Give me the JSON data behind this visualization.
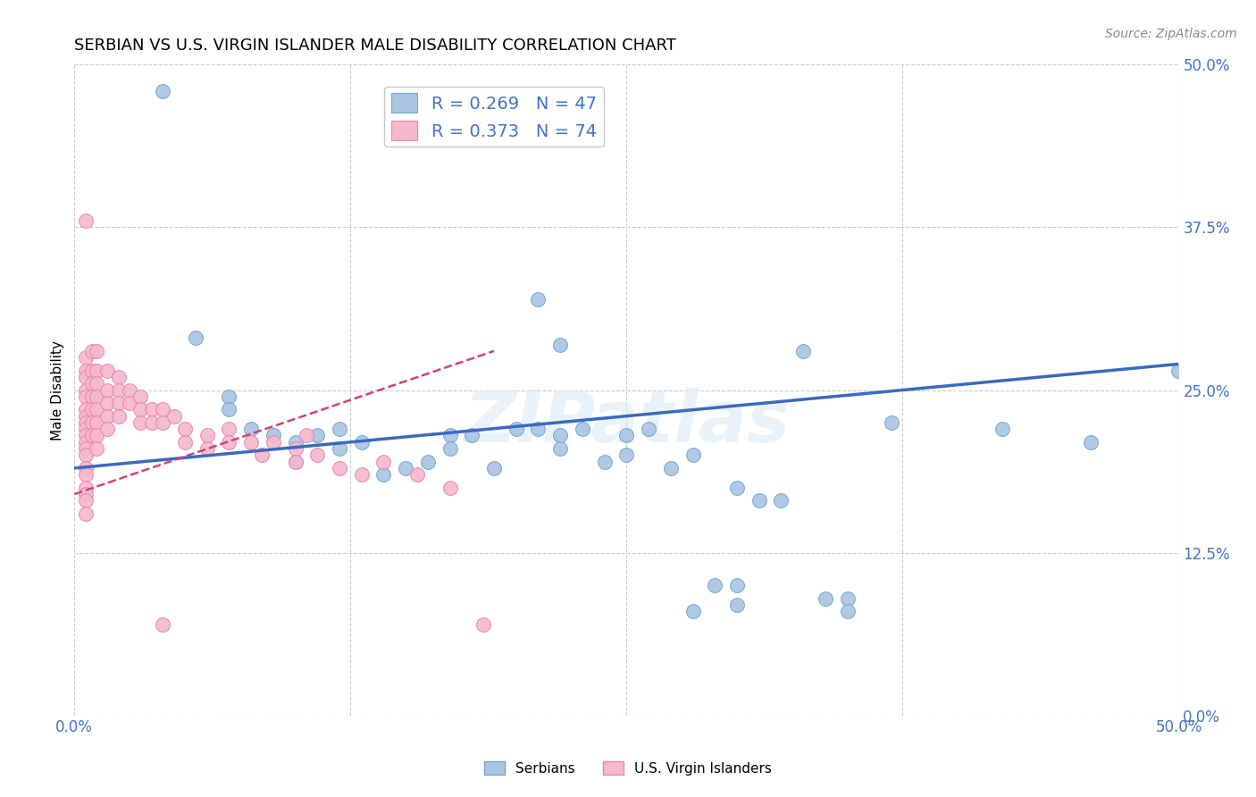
{
  "title": "SERBIAN VS U.S. VIRGIN ISLANDER MALE DISABILITY CORRELATION CHART",
  "source_text": "Source: ZipAtlas.com",
  "ylabel": "Male Disability",
  "xlim": [
    0.0,
    0.5
  ],
  "ylim": [
    0.0,
    0.5
  ],
  "xticks": [
    0.0,
    0.125,
    0.25,
    0.375,
    0.5
  ],
  "yticks": [
    0.0,
    0.125,
    0.25,
    0.375,
    0.5
  ],
  "xtick_labels_bottom": [
    "0.0%",
    "",
    "",
    "",
    "50.0%"
  ],
  "ytick_labels_right": [
    "0.0%",
    "12.5%",
    "25.0%",
    "37.5%",
    "50.0%"
  ],
  "blue_R": 0.269,
  "blue_N": 47,
  "pink_R": 0.373,
  "pink_N": 74,
  "blue_color": "#aac4e2",
  "blue_edge_color": "#6fa8d4",
  "pink_color": "#f5b8cc",
  "pink_edge_color": "#e888a8",
  "blue_line_color": "#3a6abf",
  "pink_line_color": "#cc4477",
  "legend_R_color": "#4472c4",
  "title_fontsize": 13,
  "axis_label_fontsize": 11,
  "tick_fontsize": 12,
  "legend_fontsize": 14,
  "watermark_text": "ZIPatlas",
  "blue_scatter_x": [
    0.04,
    0.055,
    0.07,
    0.07,
    0.08,
    0.09,
    0.1,
    0.1,
    0.11,
    0.12,
    0.12,
    0.13,
    0.14,
    0.15,
    0.16,
    0.17,
    0.17,
    0.18,
    0.19,
    0.2,
    0.21,
    0.22,
    0.22,
    0.23,
    0.24,
    0.25,
    0.25,
    0.26,
    0.27,
    0.28,
    0.29,
    0.3,
    0.31,
    0.32,
    0.33,
    0.34,
    0.35,
    0.37,
    0.21,
    0.22,
    0.28,
    0.42,
    0.46,
    0.5,
    0.3,
    0.3,
    0.35
  ],
  "blue_scatter_y": [
    0.48,
    0.29,
    0.245,
    0.235,
    0.22,
    0.215,
    0.21,
    0.195,
    0.215,
    0.22,
    0.205,
    0.21,
    0.185,
    0.19,
    0.195,
    0.215,
    0.205,
    0.215,
    0.19,
    0.22,
    0.22,
    0.215,
    0.205,
    0.22,
    0.195,
    0.215,
    0.2,
    0.22,
    0.19,
    0.2,
    0.1,
    0.1,
    0.165,
    0.165,
    0.28,
    0.09,
    0.09,
    0.225,
    0.32,
    0.285,
    0.08,
    0.22,
    0.21,
    0.265,
    0.085,
    0.175,
    0.08
  ],
  "pink_scatter_x": [
    0.005,
    0.005,
    0.005,
    0.005,
    0.005,
    0.005,
    0.005,
    0.005,
    0.005,
    0.005,
    0.005,
    0.005,
    0.005,
    0.005,
    0.005,
    0.005,
    0.005,
    0.005,
    0.005,
    0.005,
    0.008,
    0.008,
    0.008,
    0.008,
    0.008,
    0.008,
    0.008,
    0.01,
    0.01,
    0.01,
    0.01,
    0.01,
    0.01,
    0.01,
    0.01,
    0.015,
    0.015,
    0.015,
    0.015,
    0.015,
    0.02,
    0.02,
    0.02,
    0.02,
    0.025,
    0.025,
    0.03,
    0.03,
    0.03,
    0.035,
    0.035,
    0.04,
    0.04,
    0.045,
    0.05,
    0.05,
    0.06,
    0.06,
    0.07,
    0.07,
    0.08,
    0.085,
    0.09,
    0.1,
    0.1,
    0.105,
    0.11,
    0.12,
    0.13,
    0.14,
    0.155,
    0.17,
    0.185,
    0.04
  ],
  "pink_scatter_y": [
    0.38,
    0.275,
    0.265,
    0.26,
    0.25,
    0.245,
    0.235,
    0.23,
    0.225,
    0.22,
    0.215,
    0.21,
    0.205,
    0.2,
    0.19,
    0.185,
    0.175,
    0.17,
    0.165,
    0.155,
    0.28,
    0.265,
    0.255,
    0.245,
    0.235,
    0.225,
    0.215,
    0.28,
    0.265,
    0.255,
    0.245,
    0.235,
    0.225,
    0.215,
    0.205,
    0.265,
    0.25,
    0.24,
    0.23,
    0.22,
    0.26,
    0.25,
    0.24,
    0.23,
    0.25,
    0.24,
    0.245,
    0.235,
    0.225,
    0.235,
    0.225,
    0.235,
    0.225,
    0.23,
    0.22,
    0.21,
    0.215,
    0.205,
    0.22,
    0.21,
    0.21,
    0.2,
    0.21,
    0.205,
    0.195,
    0.215,
    0.2,
    0.19,
    0.185,
    0.195,
    0.185,
    0.175,
    0.07,
    0.07
  ],
  "blue_line_x0": 0.0,
  "blue_line_x1": 0.5,
  "blue_line_y0": 0.19,
  "blue_line_y1": 0.27,
  "pink_line_x0": 0.0,
  "pink_line_x1": 0.19,
  "pink_line_y0": 0.17,
  "pink_line_y1": 0.28,
  "background_color": "#ffffff",
  "grid_color": "#cccccc",
  "tick_color": "#4472c4"
}
